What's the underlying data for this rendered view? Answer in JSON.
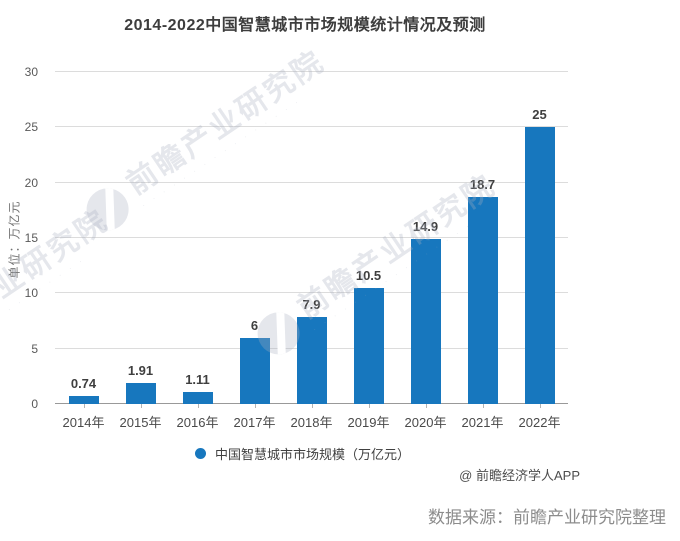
{
  "title": "2014-2022中国智慧城市市场规模统计情况及预测",
  "y_axis": {
    "unit_label": "单位：万亿元",
    "ticks": [
      0,
      5,
      10,
      15,
      20,
      25,
      30
    ]
  },
  "legend": {
    "label": "中国智慧城市市场规模（万亿元）"
  },
  "attribution": "@ 前瞻经济学人APP",
  "source_note": "数据来源：前瞻产业研究院整理",
  "watermark": {
    "text": "前瞻产业研究院",
    "subtext": "· · · · · · · · · · · · · · · ·"
  },
  "colors": {
    "bar": "#1777be",
    "grid": "#dcdcdc",
    "axis": "#999999",
    "value_label": "#3f3f3f",
    "source": "#8c8c8c"
  },
  "chart_data": {
    "type": "bar",
    "title": "2014-2022中国智慧城市市场规模统计情况及预测",
    "categories": [
      "2014年",
      "2015年",
      "2016年",
      "2017年",
      "2018年",
      "2019年",
      "2020年",
      "2021年",
      "2022年"
    ],
    "values": [
      0.74,
      1.91,
      1.11,
      6,
      7.9,
      10.5,
      14.9,
      18.7,
      25
    ],
    "value_labels": [
      "0.74",
      "1.91",
      "1.11",
      "6",
      "7.9",
      "10.5",
      "14.9",
      "18.7",
      "25"
    ],
    "xlabel": "",
    "ylabel": "单位：万亿元",
    "ylim": [
      0,
      30
    ],
    "ytick_step": 5,
    "grid": true,
    "legend": [
      "中国智慧城市市场规模（万亿元）"
    ],
    "legend_position": "bottom"
  }
}
